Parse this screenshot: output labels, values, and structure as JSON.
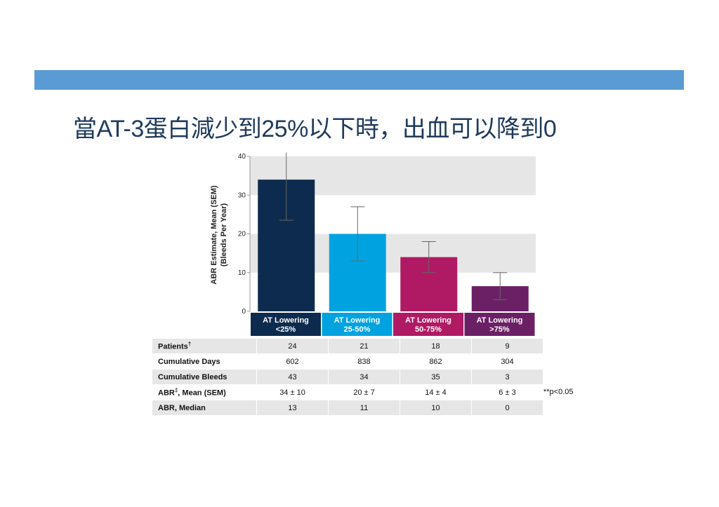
{
  "slide": {
    "title": "當AT-3蛋白減少到25%以下時，出血可以降到0",
    "accent_color": "#5b9bd5"
  },
  "chart_data": {
    "type": "bar",
    "ylabel_line1": "ABR Estimate, Mean (SEM)",
    "ylabel_line2": "(Bleeds Per Year)",
    "ylim": [
      0,
      40
    ],
    "yticks": [
      "0",
      "10",
      "20",
      "30",
      "40"
    ],
    "grid_bands": true,
    "categories": [
      {
        "line1": "AT Lowering",
        "line2": "<25%",
        "color": "#0d2b4e"
      },
      {
        "line1": "AT Lowering",
        "line2": "25-50%",
        "color": "#00a3e0"
      },
      {
        "line1": "AT Lowering",
        "line2": "50-75%",
        "color": "#b01a64"
      },
      {
        "line1": "AT Lowering",
        "line2": ">75%",
        "color": "#6b2066"
      }
    ],
    "values": [
      34,
      20,
      14,
      6.5
    ],
    "error_low": [
      23.5,
      13,
      10,
      3
    ],
    "error_high": [
      41,
      27,
      18,
      10
    ]
  },
  "table": {
    "rows": [
      {
        "label": "Patients",
        "sup": "†",
        "cells": [
          "24",
          "21",
          "18",
          "9"
        ]
      },
      {
        "label": "Cumulative Days",
        "sup": "",
        "cells": [
          "602",
          "838",
          "862",
          "304"
        ]
      },
      {
        "label": "Cumulative Bleeds",
        "sup": "",
        "cells": [
          "43",
          "34",
          "35",
          "3"
        ]
      },
      {
        "label": "ABR",
        "sup": "‡",
        "suffix": ", Mean (SEM)",
        "cells": [
          "34 ± 10",
          "20 ± 7",
          "14 ± 4",
          "6 ± 3"
        ]
      },
      {
        "label": "ABR, Median",
        "sup": "",
        "cells": [
          "13",
          "11",
          "10",
          "0"
        ]
      }
    ]
  },
  "note": "**p<0.05"
}
